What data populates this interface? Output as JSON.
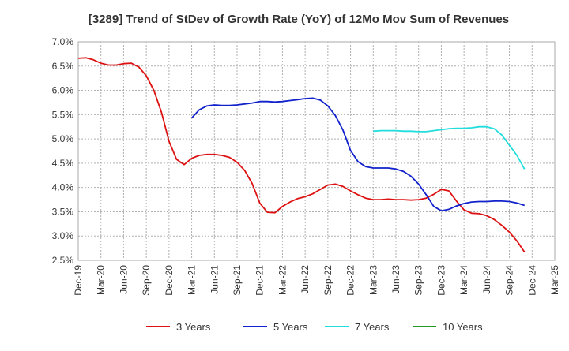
{
  "chart_data": {
    "type": "line",
    "title": "[3289]  Trend of StDev of Growth Rate (YoY) of 12Mo Mov Sum of Revenues",
    "xlabel": "",
    "ylabel": "",
    "x_ticks": [
      "Dec-19",
      "Mar-20",
      "Jun-20",
      "Sep-20",
      "Dec-20",
      "Mar-21",
      "Jun-21",
      "Sep-21",
      "Dec-21",
      "Mar-22",
      "Jun-22",
      "Sep-22",
      "Dec-22",
      "Mar-23",
      "Jun-23",
      "Sep-23",
      "Dec-23",
      "Mar-24",
      "Jun-24",
      "Sep-24",
      "Dec-24",
      "Mar-25"
    ],
    "y_ticks": [
      "7.0%",
      "6.5%",
      "6.0%",
      "5.5%",
      "5.0%",
      "4.5%",
      "4.0%",
      "3.5%",
      "3.0%",
      "2.5%"
    ],
    "ylim": [
      2.5,
      7.0
    ],
    "x_range_months": [
      0,
      63
    ],
    "grid": true,
    "legend_position": "bottom",
    "series": [
      {
        "name": "3 Years",
        "color": "#dd1111",
        "points": [
          [
            0,
            6.66
          ],
          [
            1,
            6.67
          ],
          [
            2,
            6.63
          ],
          [
            3,
            6.56
          ],
          [
            4,
            6.52
          ],
          [
            5,
            6.52
          ],
          [
            6,
            6.55
          ],
          [
            7,
            6.56
          ],
          [
            8,
            6.48
          ],
          [
            9,
            6.3
          ],
          [
            10,
            6.0
          ],
          [
            11,
            5.55
          ],
          [
            12,
            4.95
          ],
          [
            13,
            4.58
          ],
          [
            14,
            4.47
          ],
          [
            15,
            4.6
          ],
          [
            16,
            4.66
          ],
          [
            17,
            4.68
          ],
          [
            18,
            4.68
          ],
          [
            19,
            4.66
          ],
          [
            20,
            4.62
          ],
          [
            21,
            4.52
          ],
          [
            22,
            4.35
          ],
          [
            23,
            4.08
          ],
          [
            24,
            3.68
          ],
          [
            25,
            3.49
          ],
          [
            26,
            3.48
          ],
          [
            27,
            3.61
          ],
          [
            28,
            3.7
          ],
          [
            29,
            3.77
          ],
          [
            30,
            3.81
          ],
          [
            31,
            3.87
          ],
          [
            32,
            3.96
          ],
          [
            33,
            4.05
          ],
          [
            34,
            4.07
          ],
          [
            35,
            4.02
          ],
          [
            36,
            3.93
          ],
          [
            37,
            3.85
          ],
          [
            38,
            3.78
          ],
          [
            39,
            3.75
          ],
          [
            40,
            3.75
          ],
          [
            41,
            3.76
          ],
          [
            42,
            3.75
          ],
          [
            43,
            3.75
          ],
          [
            44,
            3.74
          ],
          [
            45,
            3.75
          ],
          [
            46,
            3.78
          ],
          [
            47,
            3.86
          ],
          [
            48,
            3.96
          ],
          [
            49,
            3.93
          ],
          [
            50,
            3.72
          ],
          [
            51,
            3.54
          ],
          [
            52,
            3.47
          ],
          [
            53,
            3.46
          ],
          [
            54,
            3.42
          ],
          [
            55,
            3.34
          ],
          [
            56,
            3.22
          ],
          [
            57,
            3.08
          ],
          [
            58,
            2.9
          ],
          [
            59,
            2.67
          ]
        ]
      },
      {
        "name": "5 Years",
        "color": "#1122cc",
        "points": [
          [
            15,
            5.43
          ],
          [
            16,
            5.6
          ],
          [
            17,
            5.68
          ],
          [
            18,
            5.7
          ],
          [
            19,
            5.69
          ],
          [
            20,
            5.69
          ],
          [
            21,
            5.7
          ],
          [
            22,
            5.72
          ],
          [
            23,
            5.74
          ],
          [
            24,
            5.77
          ],
          [
            25,
            5.77
          ],
          [
            26,
            5.76
          ],
          [
            27,
            5.77
          ],
          [
            28,
            5.79
          ],
          [
            29,
            5.81
          ],
          [
            30,
            5.83
          ],
          [
            31,
            5.84
          ],
          [
            32,
            5.8
          ],
          [
            33,
            5.68
          ],
          [
            34,
            5.48
          ],
          [
            35,
            5.18
          ],
          [
            36,
            4.76
          ],
          [
            37,
            4.53
          ],
          [
            38,
            4.43
          ],
          [
            39,
            4.4
          ],
          [
            40,
            4.4
          ],
          [
            41,
            4.4
          ],
          [
            42,
            4.38
          ],
          [
            43,
            4.33
          ],
          [
            44,
            4.23
          ],
          [
            45,
            4.07
          ],
          [
            46,
            3.85
          ],
          [
            47,
            3.61
          ],
          [
            48,
            3.52
          ],
          [
            49,
            3.55
          ],
          [
            50,
            3.62
          ],
          [
            51,
            3.67
          ],
          [
            52,
            3.7
          ],
          [
            53,
            3.71
          ],
          [
            54,
            3.71
          ],
          [
            55,
            3.72
          ],
          [
            56,
            3.72
          ],
          [
            57,
            3.71
          ],
          [
            58,
            3.68
          ],
          [
            59,
            3.63
          ]
        ]
      },
      {
        "name": "7 Years",
        "color": "#22dddd",
        "points": [
          [
            39,
            5.16
          ],
          [
            40,
            5.17
          ],
          [
            41,
            5.17
          ],
          [
            42,
            5.17
          ],
          [
            43,
            5.16
          ],
          [
            44,
            5.16
          ],
          [
            45,
            5.15
          ],
          [
            46,
            5.15
          ],
          [
            47,
            5.17
          ],
          [
            48,
            5.19
          ],
          [
            49,
            5.21
          ],
          [
            50,
            5.22
          ],
          [
            51,
            5.22
          ],
          [
            52,
            5.23
          ],
          [
            53,
            5.25
          ],
          [
            54,
            5.25
          ],
          [
            55,
            5.21
          ],
          [
            56,
            5.08
          ],
          [
            57,
            4.87
          ],
          [
            58,
            4.66
          ],
          [
            59,
            4.38
          ]
        ]
      },
      {
        "name": "10 Years",
        "color": "#229922",
        "points": []
      }
    ]
  }
}
